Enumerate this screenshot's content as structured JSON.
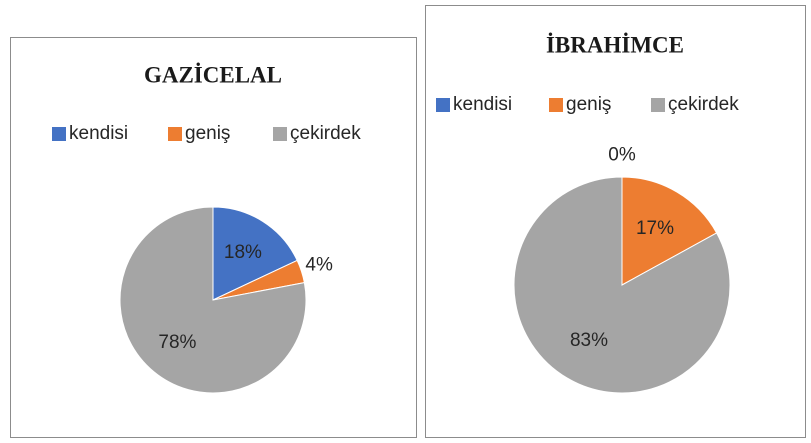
{
  "chart_data": [
    {
      "type": "pie",
      "title": "GAZİCELAL",
      "categories": [
        "kendisi",
        "geniş",
        "çekirdek"
      ],
      "values": [
        18,
        4,
        78
      ],
      "value_labels": [
        "18%",
        "4%",
        "78%"
      ],
      "colors": [
        "#4472c4",
        "#ed7d31",
        "#a5a5a5"
      ],
      "legend": "top"
    },
    {
      "type": "pie",
      "title": "İBRAHİMCE",
      "categories": [
        "kendisi",
        "geniş",
        "çekirdek"
      ],
      "values": [
        0,
        17,
        83
      ],
      "value_labels": [
        "0%",
        "17%",
        "83%"
      ],
      "colors": [
        "#4472c4",
        "#ed7d31",
        "#a5a5a5"
      ],
      "legend": "top"
    }
  ]
}
